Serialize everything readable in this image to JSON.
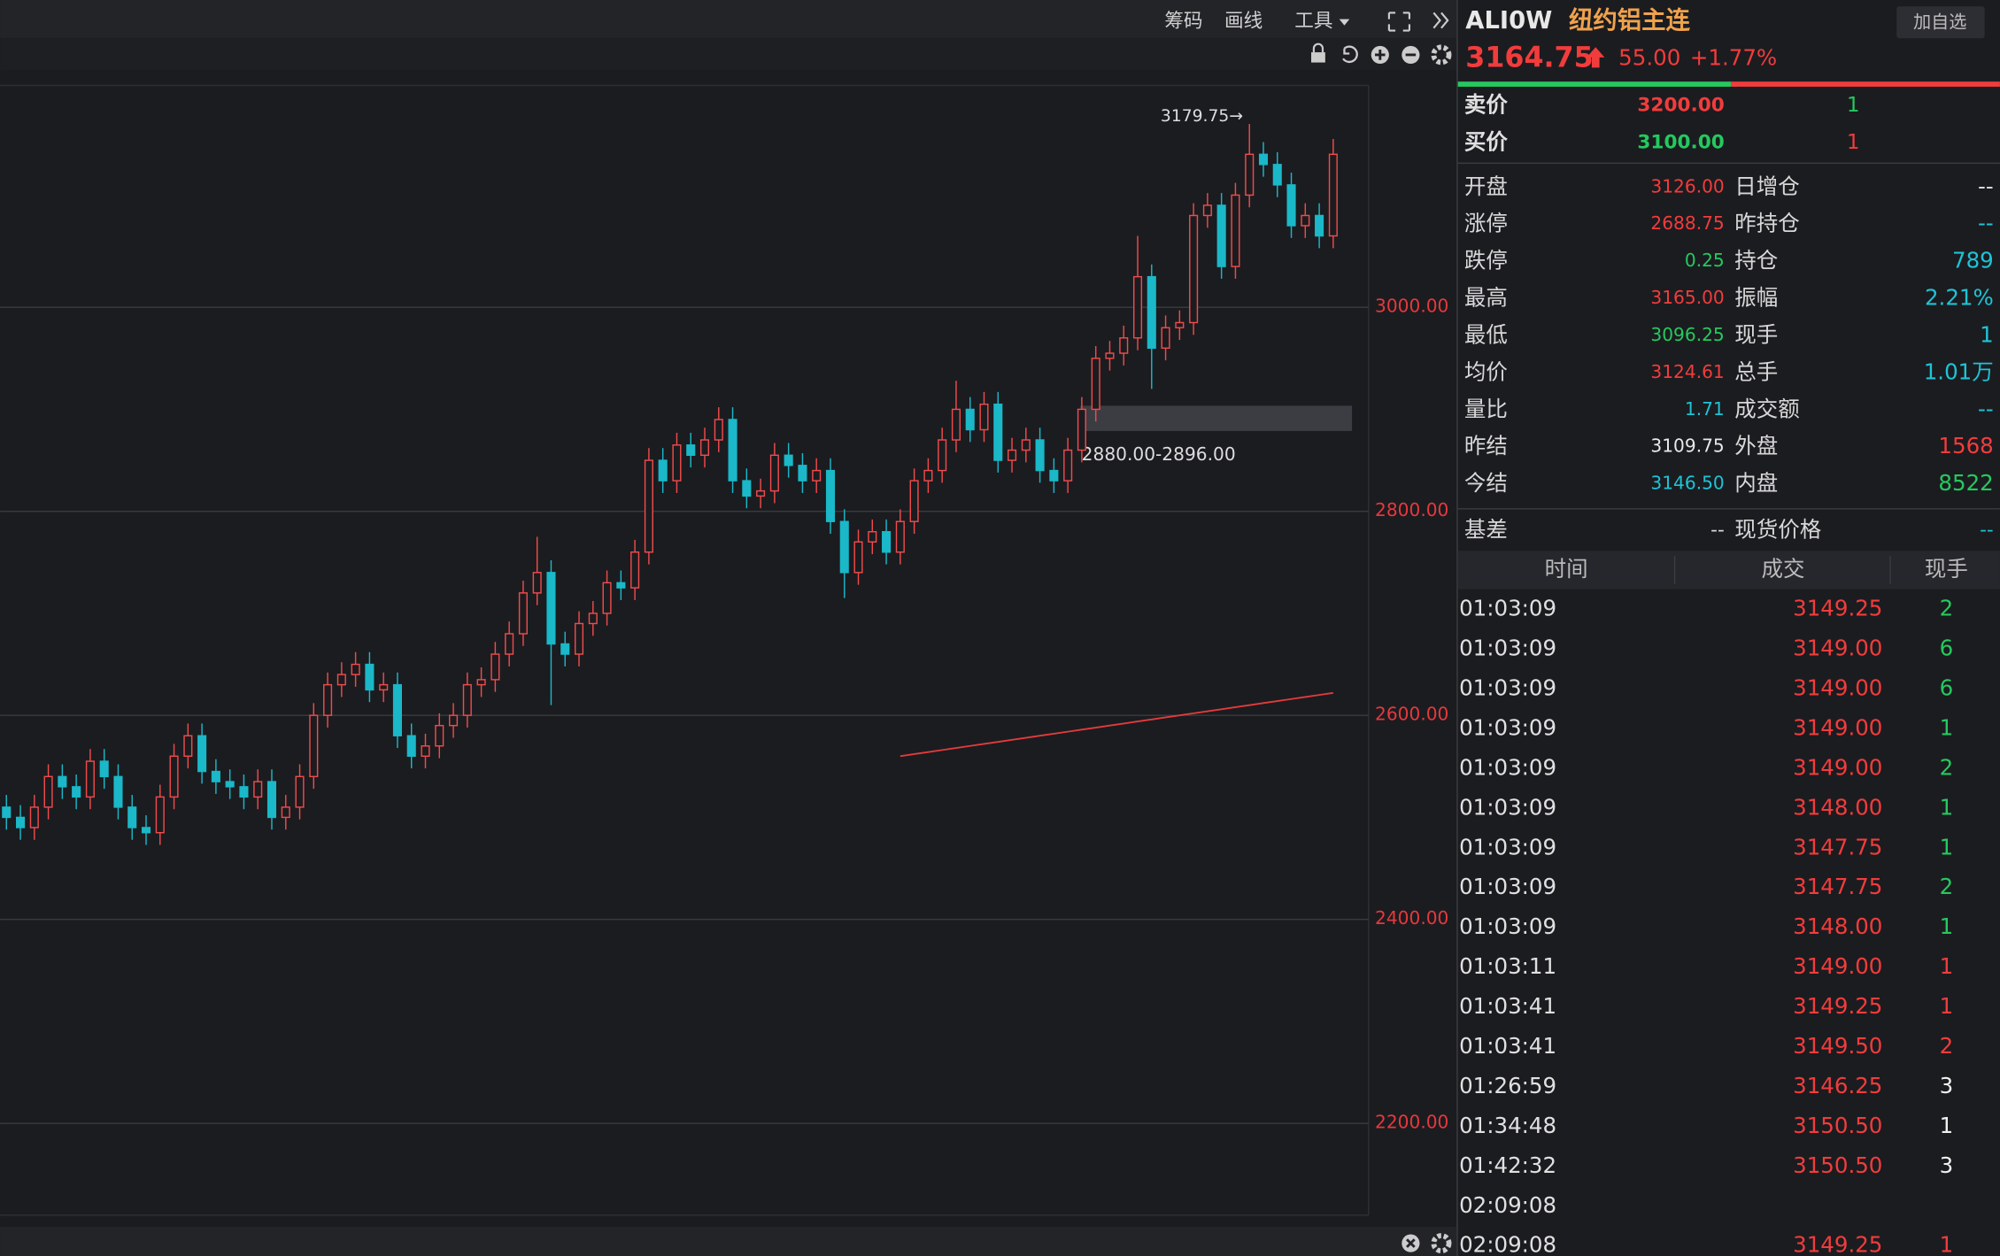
{
  "toolbar": {
    "items": [
      "筹码",
      "画线",
      "工具"
    ]
  },
  "chart_data": {
    "type": "candlestick",
    "ylim": [
      2108.75,
      3217.5
    ],
    "yticks": [
      {
        "value": 3000,
        "label": "3000.00"
      },
      {
        "value": 2800,
        "label": "2800.00"
      },
      {
        "value": 2600,
        "label": "2600.00"
      },
      {
        "value": 2400,
        "label": "2400.00"
      },
      {
        "value": 2200,
        "label": "2200.00"
      }
    ],
    "grid": true,
    "up_color": "#ef4b4b",
    "down_color": "#1ab8c8",
    "series": [
      {
        "open": [
          2510,
          2500,
          2490,
          2510,
          2540,
          2530,
          2520,
          2555,
          2540,
          2510,
          2490,
          2485,
          2520,
          2560,
          2580,
          2545,
          2535,
          2530,
          2520,
          2535,
          2500,
          2510,
          2540,
          2600,
          2630,
          2640,
          2650,
          2625,
          2630,
          2580,
          2560,
          2570,
          2590,
          2600,
          2630,
          2635,
          2660,
          2680,
          2720,
          2740,
          2670,
          2660,
          2690,
          2700,
          2730,
          2725,
          2760,
          2850,
          2830,
          2865,
          2855,
          2870,
          2890,
          2830,
          2815,
          2820,
          2855,
          2845,
          2830,
          2840,
          2790,
          2740,
          2770,
          2780,
          2760,
          2790,
          2830,
          2840,
          2870,
          2900,
          2880,
          2905,
          2850,
          2860,
          2870,
          2840,
          2830,
          2860,
          2900,
          2950,
          2955,
          2970,
          3030,
          2960,
          2980,
          2985,
          3090,
          3100,
          3040,
          3110,
          3150,
          3140,
          3120,
          3080,
          3090,
          3070
        ],
        "high": [
          2522,
          2512,
          2522,
          2552,
          2552,
          2542,
          2567,
          2567,
          2552,
          2522,
          2502,
          2532,
          2572,
          2592,
          2592,
          2557,
          2547,
          2542,
          2547,
          2547,
          2522,
          2552,
          2612,
          2642,
          2652,
          2662,
          2662,
          2642,
          2642,
          2592,
          2582,
          2602,
          2612,
          2642,
          2647,
          2672,
          2692,
          2732,
          2775,
          2752,
          2682,
          2702,
          2712,
          2742,
          2742,
          2772,
          2862,
          2862,
          2877,
          2877,
          2882,
          2902,
          2902,
          2842,
          2832,
          2867,
          2867,
          2857,
          2852,
          2852,
          2802,
          2782,
          2792,
          2792,
          2802,
          2842,
          2852,
          2882,
          2928,
          2912,
          2917,
          2917,
          2872,
          2882,
          2882,
          2852,
          2872,
          2912,
          2962,
          2967,
          2982,
          3070,
          3042,
          2992,
          2997,
          3102,
          3112,
          3112,
          3122,
          3179.75,
          3162,
          3152,
          3132,
          3102,
          3102,
          3165
        ],
        "low": [
          2488,
          2478,
          2478,
          2498,
          2518,
          2508,
          2508,
          2528,
          2498,
          2478,
          2473,
          2473,
          2508,
          2548,
          2533,
          2523,
          2518,
          2508,
          2508,
          2488,
          2488,
          2498,
          2528,
          2588,
          2618,
          2628,
          2613,
          2613,
          2568,
          2548,
          2548,
          2558,
          2578,
          2588,
          2618,
          2623,
          2648,
          2668,
          2708,
          2610,
          2648,
          2648,
          2678,
          2688,
          2713,
          2713,
          2748,
          2818,
          2818,
          2843,
          2843,
          2858,
          2818,
          2803,
          2803,
          2808,
          2833,
          2818,
          2818,
          2778,
          2715,
          2728,
          2758,
          2748,
          2748,
          2778,
          2818,
          2828,
          2858,
          2868,
          2868,
          2838,
          2838,
          2848,
          2828,
          2818,
          2818,
          2848,
          2888,
          2938,
          2943,
          2958,
          2920,
          2948,
          2968,
          2973,
          3078,
          3028,
          3028,
          3098,
          3128,
          3108,
          3068,
          3068,
          3058,
          3058
        ],
        "close": [
          2500,
          2490,
          2510,
          2540,
          2530,
          2520,
          2555,
          2540,
          2510,
          2490,
          2485,
          2520,
          2560,
          2580,
          2545,
          2535,
          2530,
          2520,
          2535,
          2500,
          2510,
          2540,
          2600,
          2630,
          2640,
          2650,
          2625,
          2630,
          2580,
          2560,
          2570,
          2590,
          2600,
          2630,
          2635,
          2660,
          2680,
          2720,
          2740,
          2670,
          2660,
          2690,
          2700,
          2730,
          2725,
          2760,
          2850,
          2830,
          2865,
          2855,
          2870,
          2890,
          2830,
          2815,
          2820,
          2855,
          2845,
          2830,
          2840,
          2790,
          2740,
          2770,
          2780,
          2760,
          2790,
          2830,
          2840,
          2870,
          2900,
          2880,
          2905,
          2850,
          2860,
          2870,
          2840,
          2830,
          2860,
          2900,
          2950,
          2955,
          2970,
          3030,
          2960,
          2980,
          2985,
          3090,
          3100,
          3040,
          3110,
          3150,
          3140,
          3120,
          3080,
          3090,
          3070,
          3150
        ]
      }
    ],
    "lines": [
      {
        "color": "#e23b3b",
        "values": [
          null,
          null,
          null,
          null,
          null,
          null,
          null,
          null,
          null,
          null,
          null,
          null,
          null,
          null,
          null,
          null,
          null,
          null,
          null,
          null,
          null,
          null,
          null,
          null,
          null,
          null,
          null,
          null,
          null,
          null,
          null,
          null,
          null,
          null,
          null,
          null,
          null,
          null,
          null,
          null,
          null,
          null,
          null,
          null,
          null,
          null,
          null,
          null,
          null,
          null,
          null,
          null,
          null,
          null,
          null,
          null,
          null,
          null,
          null,
          null,
          null,
          null,
          null,
          null,
          2560,
          2562,
          2564,
          2566,
          2568,
          2570,
          2572,
          2574,
          2576,
          2578,
          2580,
          2582,
          2584,
          2586,
          2588,
          2590,
          2592,
          2594,
          2596,
          2598,
          2600,
          2602,
          2604,
          2606,
          2608,
          2610,
          2612,
          2614,
          2616,
          2618,
          2620,
          2622
        ]
      }
    ],
    "zones": [
      {
        "label": "2880.00-2896.00",
        "from": 2880,
        "to": 2896
      }
    ],
    "annotations": [
      {
        "text": "3179.75→"
      }
    ]
  },
  "quote": {
    "symbol": "ALI0W",
    "name": "纽约铝主连",
    "button": "加自选",
    "price": "3164.75",
    "change": "55.00",
    "change_pct": "+1.77%",
    "book": [
      {
        "label": "卖价",
        "price": "3200.00",
        "qty": "1",
        "price_color": "#f23c3c",
        "qty_color": "#25c95e"
      },
      {
        "label": "买价",
        "price": "3100.00",
        "qty": "1",
        "price_color": "#25c95e",
        "qty_color": "#f23c3c"
      }
    ],
    "stats": [
      [
        "开盘",
        "3126.00",
        "#f23c3c",
        "日增仓",
        "--",
        "#d8d8d8"
      ],
      [
        "涨停",
        "2688.75",
        "#f23c3c",
        "昨持仓",
        "--",
        "#1ec3d6"
      ],
      [
        "跌停",
        "0.25",
        "#25c95e",
        "持仓",
        "789",
        "#1ec3d6"
      ],
      [
        "最高",
        "3165.00",
        "#f23c3c",
        "振幅",
        "2.21%",
        "#1ec3d6"
      ],
      [
        "最低",
        "3096.25",
        "#25c95e",
        "现手",
        "1",
        "#1ec3d6"
      ],
      [
        "均价",
        "3124.61",
        "#f23c3c",
        "总手",
        "1.01万",
        "#1ec3d6"
      ],
      [
        "量比",
        "1.71",
        "#1ec3d6",
        "成交额",
        "--",
        "#1ec3d6"
      ],
      [
        "昨结",
        "3109.75",
        "#e8e8e8",
        "外盘",
        "1568",
        "#f23c3c"
      ],
      [
        "今结",
        "3146.50",
        "#1ec3d6",
        "内盘",
        "8522",
        "#25c95e"
      ]
    ],
    "basis": [
      "基差",
      "--",
      "现货价格",
      "--"
    ]
  },
  "trades": {
    "header": [
      "时间",
      "成交",
      "现手"
    ],
    "rows": [
      [
        "01:03:09",
        "3149.25",
        "2",
        "#25c95e"
      ],
      [
        "01:03:09",
        "3149.00",
        "6",
        "#25c95e"
      ],
      [
        "01:03:09",
        "3149.00",
        "6",
        "#25c95e"
      ],
      [
        "01:03:09",
        "3149.00",
        "1",
        "#25c95e"
      ],
      [
        "01:03:09",
        "3149.00",
        "2",
        "#25c95e"
      ],
      [
        "01:03:09",
        "3148.00",
        "1",
        "#25c95e"
      ],
      [
        "01:03:09",
        "3147.75",
        "1",
        "#25c95e"
      ],
      [
        "01:03:09",
        "3147.75",
        "2",
        "#25c95e"
      ],
      [
        "01:03:09",
        "3148.00",
        "1",
        "#25c95e"
      ],
      [
        "01:03:11",
        "3149.00",
        "1",
        "#f23c3c"
      ],
      [
        "01:03:41",
        "3149.25",
        "1",
        "#f23c3c"
      ],
      [
        "01:03:41",
        "3149.50",
        "2",
        "#f23c3c"
      ],
      [
        "01:26:59",
        "3146.25",
        "3",
        "#f0f0f0"
      ],
      [
        "01:34:48",
        "3150.50",
        "1",
        "#f0f0f0"
      ],
      [
        "01:42:32",
        "3150.50",
        "3",
        "#f0f0f0"
      ],
      [
        "02:09:08"
      ],
      [
        "02:09:08",
        "3149.25",
        "1",
        "#f23c3c"
      ]
    ]
  }
}
